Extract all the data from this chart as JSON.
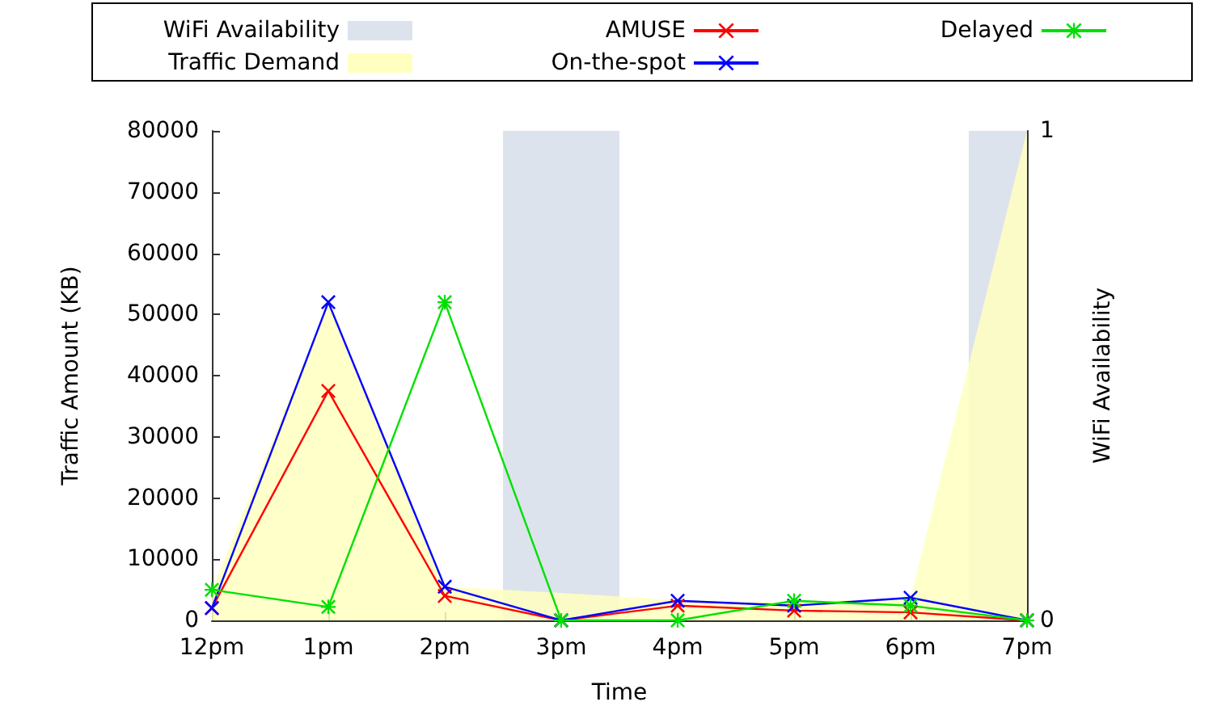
{
  "chart_data": {
    "type": "line",
    "xlabel": "Time",
    "ylabel": "Traffic Amount (KB)",
    "y2label": "WiFi Availability",
    "categories": [
      "12pm",
      "1pm",
      "2pm",
      "3pm",
      "4pm",
      "5pm",
      "6pm",
      "7pm"
    ],
    "ylim": [
      0,
      80000
    ],
    "yticks": [
      0,
      10000,
      20000,
      30000,
      40000,
      50000,
      60000,
      70000,
      80000
    ],
    "y2lim": [
      0,
      1
    ],
    "y2ticks": [
      0,
      1
    ],
    "grid": false,
    "legend": "top",
    "series": [
      {
        "name": "WiFi Availability",
        "type": "bar",
        "axis": "y2",
        "color": "#dce3ed",
        "values": [
          0,
          0,
          0,
          1,
          0,
          0,
          0,
          1
        ]
      },
      {
        "name": "Traffic Demand",
        "type": "area",
        "color": "#ffffc0",
        "values": [
          5000,
          52000,
          5500,
          4500,
          3300,
          3000,
          3700,
          80000
        ],
        "marker": "none"
      },
      {
        "name": "AMUSE",
        "color": "#ff0000",
        "values": [
          2000,
          37500,
          4000,
          0,
          2400,
          1600,
          1300,
          0
        ],
        "marker": "cross"
      },
      {
        "name": "On-the-spot",
        "color": "#0000ff",
        "values": [
          2000,
          52000,
          5500,
          0,
          3200,
          2400,
          3700,
          0
        ],
        "marker": "cross"
      },
      {
        "name": "Delayed",
        "color": "#00e000",
        "values": [
          5000,
          2200,
          52000,
          0,
          0,
          3200,
          2400,
          0
        ],
        "marker": "star"
      }
    ]
  }
}
